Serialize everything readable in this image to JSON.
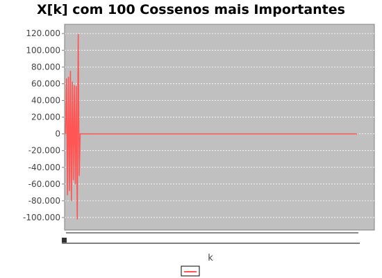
{
  "chart_data": {
    "type": "line",
    "title": "X[k] com 100 Cossenos mais Importantes",
    "xlabel": "k",
    "ylabel": "",
    "ylim": [
      -115000,
      131000
    ],
    "xlim": [
      -1,
      300
    ],
    "y_ticks": [
      -100000,
      -80000,
      -60000,
      -40000,
      -20000,
      0,
      20000,
      40000,
      60000,
      80000,
      100000,
      120000
    ],
    "y_tick_labels": [
      "-100.000",
      "-80.000",
      "-60.000",
      "-40.000",
      "-20.000",
      "0",
      "20.000",
      "40.000",
      "60.000",
      "80.000",
      "100.000",
      "120.000"
    ],
    "grid": true,
    "legend": "bottom-center",
    "series": [
      {
        "name": "",
        "color": "#ff5555",
        "x": [
          0,
          1,
          2,
          3,
          4,
          5,
          6,
          7,
          8,
          9,
          10,
          11,
          12,
          13,
          14,
          15,
          16,
          299
        ],
        "y": [
          0,
          66000,
          -73000,
          68000,
          -68000,
          75000,
          -80000,
          62000,
          -55000,
          58000,
          -60000,
          57000,
          -102000,
          119000,
          -50000,
          0,
          0,
          0
        ]
      }
    ]
  },
  "colors": {
    "plot_background": "#c0c0c0",
    "grid": "#ffffff",
    "series": "#ff5555",
    "axis": "#808080"
  }
}
